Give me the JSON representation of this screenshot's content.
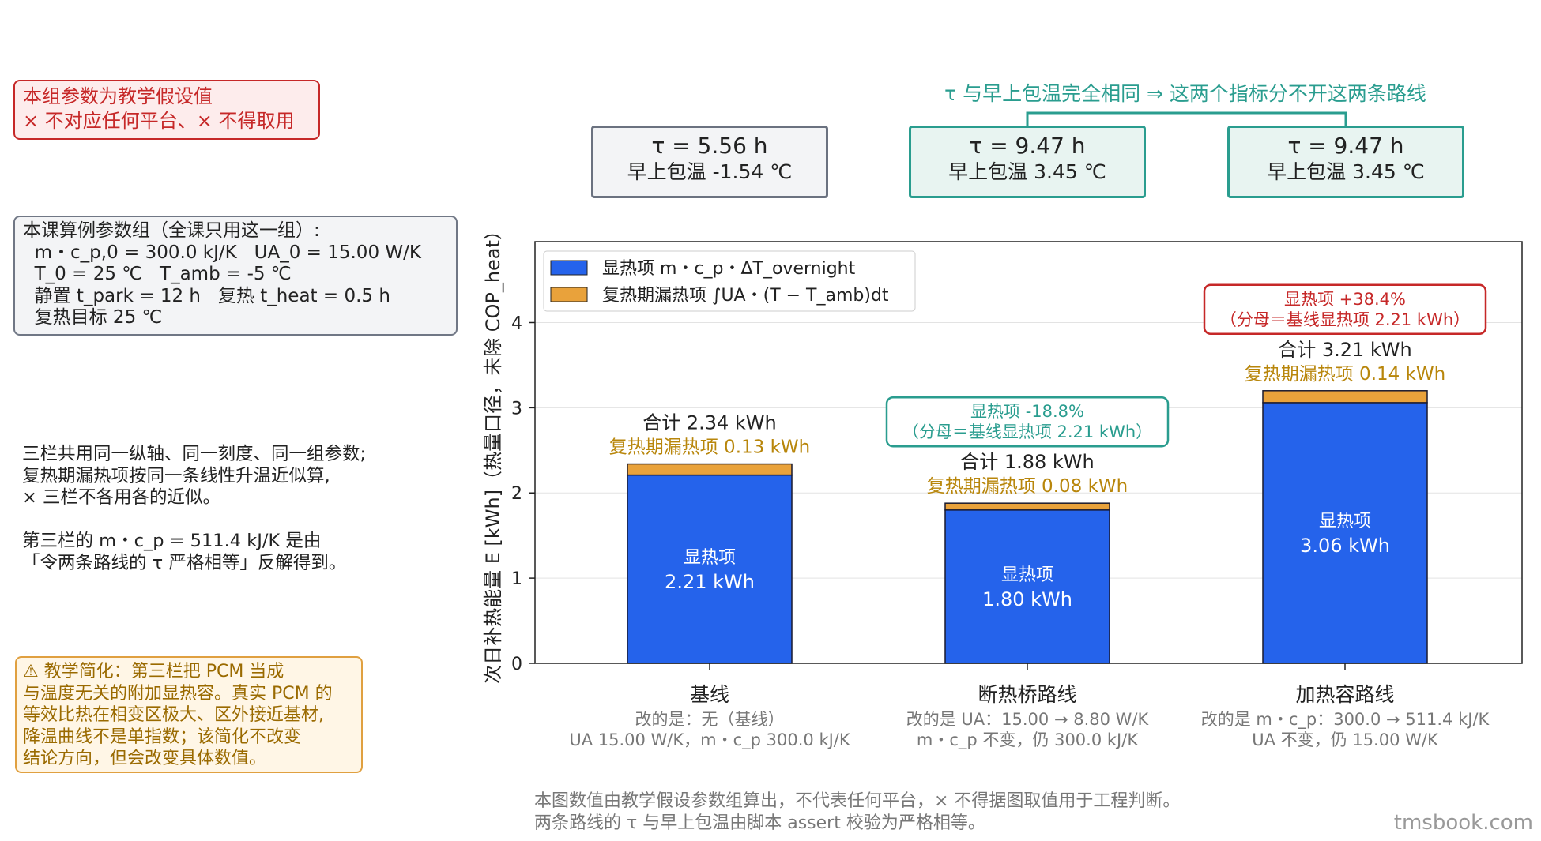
{
  "notes": {
    "disclaimer": [
      "本组参数为教学假设值",
      "× 不对应任何平台、× 不得取用"
    ],
    "params": [
      "本课算例参数组（全课只用这一组）:",
      "  m・c_p,0 = 300.0 kJ/K   UA_0 = 15.00 W/K",
      "  T_0 = 25 ℃   T_amb = -5 ℃",
      "  静置 t_park = 12 h   复热 t_heat = 0.5 h",
      "  复热目标 25 ℃"
    ],
    "shared": [
      "三栏共用同一纵轴、同一刻度、同一组参数;",
      "复热期漏热项按同一条线性升温近似算,",
      "× 三栏不各用各的近似。",
      "",
      "第三栏的 m・c_p = 511.4 kJ/K 是由",
      "「令两条路线的 τ 严格相等」反解得到。"
    ],
    "warning": [
      "⚠ 教学简化：第三栏把 PCM 当成",
      "与温度无关的附加显热容。真实 PCM 的",
      "等效比热在相变区极大、区外接近基材,",
      "降温曲线不是单指数；该简化不改变",
      "结论方向，但会改变具体数值。"
    ],
    "footer": [
      "本图数值由教学假设参数组算出，不代表任何平台，× 不得据图取值用于工程判断。",
      "两条路线的 τ 与早上包温由脚本 assert 校验为严格相等。"
    ],
    "brand": "tmsbook.com"
  },
  "tau_boxes": [
    {
      "tau": "τ  = 5.56 h",
      "temp": "早上包温 -1.54 ℃",
      "border": "#6b7280",
      "bg": "#f3f4f6"
    },
    {
      "tau": "τ  = 9.47 h",
      "temp": "早上包温 3.45 ℃",
      "border": "#2a9d8f",
      "bg": "#e8f4f1"
    },
    {
      "tau": "τ  = 9.47 h",
      "temp": "早上包温 3.45 ℃",
      "border": "#2a9d8f",
      "bg": "#e8f4f1"
    }
  ],
  "tau_equal_note": "τ  与早上包温完全相同 ⇒ 这两个指标分不开这两条路线",
  "colors": {
    "sensible": "#2563eb",
    "leak": "#e9a23b",
    "teal": "#2a9d8f",
    "red": "#c62828",
    "leak_text": "#b8860b",
    "sub_text": "#777777"
  },
  "chart_data": {
    "type": "bar",
    "stacked": true,
    "ylabel": "次日补热能量 E [kWh]（热量口径，未除 COP_heat）",
    "ylim": [
      0,
      4.95
    ],
    "yticks": [
      0,
      1,
      2,
      3,
      4
    ],
    "grid": true,
    "legend_position": "top-left",
    "categories": [
      "基线",
      "断热桥路线",
      "加热容路线"
    ],
    "category_notes": [
      [
        "改的是：无（基线）",
        "UA 15.00 W/K，m・c_p 300.0 kJ/K"
      ],
      [
        "改的是 UA：15.00 → 8.80 W/K",
        "m・c_p 不变，仍 300.0 kJ/K"
      ],
      [
        "改的是 m・c_p：300.0 → 511.4 kJ/K",
        "UA 不变，仍 15.00 W/K"
      ]
    ],
    "series": [
      {
        "name": "显热项 m・c_p・ΔT_overnight",
        "values": [
          2.21,
          1.8,
          3.06
        ]
      },
      {
        "name": "复热期漏热项 ∫UA・(T − T_amb)dt",
        "values": [
          0.13,
          0.08,
          0.14
        ]
      }
    ],
    "inner_labels": [
      [
        "显热项",
        "2.21 kWh"
      ],
      [
        "显热项",
        "1.80 kWh"
      ],
      [
        "显热项",
        "3.06 kWh"
      ]
    ],
    "total_labels": [
      "合计 2.34 kWh",
      "合计 1.88 kWh",
      "合计 3.21 kWh"
    ],
    "leak_labels": [
      "复热期漏热项 0.13 kWh",
      "复热期漏热项 0.08 kWh",
      "复热期漏热项 0.14 kWh"
    ],
    "annotations": [
      {
        "index": 1,
        "lines": [
          "显热项 -18.8%",
          "（分母＝基线显热项 2.21 kWh）"
        ],
        "style": "teal"
      },
      {
        "index": 2,
        "lines": [
          "显热项 +38.4%",
          "（分母＝基线显热项 2.21 kWh）"
        ],
        "style": "red"
      }
    ]
  }
}
